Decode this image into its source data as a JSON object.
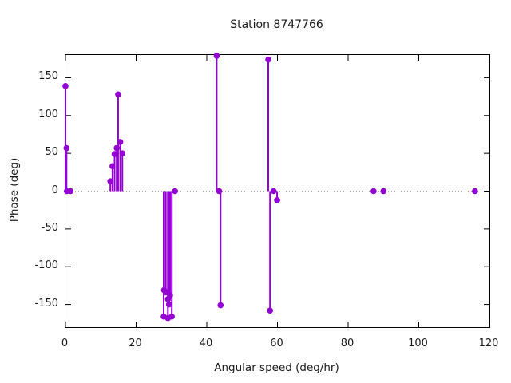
{
  "title": "Station 8747766",
  "chart_data": {
    "type": "scatter",
    "style": "impulses-with-points",
    "title": "Station 8747766",
    "xlabel": "Angular speed (deg/hr)",
    "ylabel": "Phase (deg)",
    "xlim": [
      0,
      120
    ],
    "ylim": [
      -180,
      180
    ],
    "xticks": [
      0,
      20,
      40,
      60,
      80,
      100,
      120
    ],
    "yticks": [
      -150,
      -100,
      -50,
      0,
      50,
      100,
      150
    ],
    "grid": false,
    "zero_line": "dotted",
    "legend": "none",
    "marker_color": "#9400d3",
    "axis_color": "#000000",
    "zero_line_color": "#a8a8a8",
    "background": "#ffffff",
    "points": [
      [
        0.0,
        139
      ],
      [
        0.3,
        57
      ],
      [
        0.4,
        0
      ],
      [
        1.4,
        0
      ],
      [
        12.7,
        13
      ],
      [
        13.3,
        33
      ],
      [
        13.9,
        49
      ],
      [
        14.5,
        57
      ],
      [
        14.9,
        128
      ],
      [
        15.5,
        65
      ],
      [
        16.1,
        50
      ],
      [
        27.8,
        -166
      ],
      [
        27.9,
        -131
      ],
      [
        28.4,
        -134
      ],
      [
        29.0,
        -143
      ],
      [
        29.0,
        -168
      ],
      [
        29.3,
        -150
      ],
      [
        29.6,
        -138
      ],
      [
        30.1,
        -166
      ],
      [
        31.0,
        0
      ],
      [
        42.8,
        179
      ],
      [
        43.5,
        0
      ],
      [
        43.9,
        -151
      ],
      [
        57.4,
        174
      ],
      [
        57.9,
        -158
      ],
      [
        58.9,
        0
      ],
      [
        59.9,
        -12
      ],
      [
        87.2,
        0
      ],
      [
        90.0,
        0
      ],
      [
        115.9,
        0
      ]
    ]
  }
}
